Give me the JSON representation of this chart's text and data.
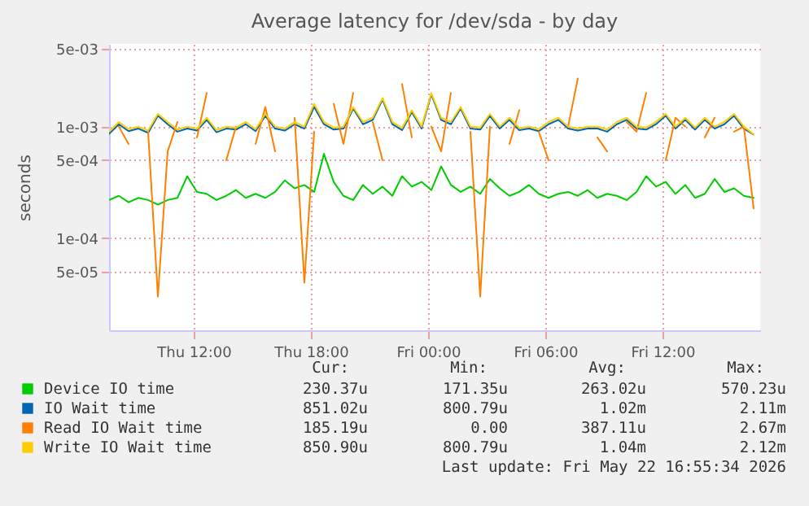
{
  "chart_data": {
    "type": "line",
    "title": "Average latency for /dev/sda - by day",
    "ylabel": "seconds",
    "log": true,
    "grid": true,
    "legend": "bottom",
    "marker": "none",
    "line_style": "solid",
    "xlim": [
      "2026-05-21T07:40",
      "2026-05-22T17:00"
    ],
    "xticks": [
      {
        "value": "2026-05-21T12:00",
        "label": "Thu 12:00"
      },
      {
        "value": "2026-05-21T18:00",
        "label": "Thu 18:00"
      },
      {
        "value": "2026-05-22T00:00",
        "label": "Fri 00:00"
      },
      {
        "value": "2026-05-22T06:00",
        "label": "Fri 06:00"
      },
      {
        "value": "2026-05-22T12:00",
        "label": "Fri 12:00"
      }
    ],
    "ylim": [
      1.5e-05,
      0.0055
    ],
    "yticks": [
      {
        "value": 5e-05,
        "label": "5e-05"
      },
      {
        "value": 0.0001,
        "label": "1e-04"
      },
      {
        "value": 0.0005,
        "label": "5e-04"
      },
      {
        "value": 0.001,
        "label": "1e-03"
      },
      {
        "value": 0.005,
        "label": "5e-03"
      }
    ],
    "x": [
      "2026-05-21T07:40",
      "2026-05-21T08:10",
      "2026-05-21T08:40",
      "2026-05-21T09:10",
      "2026-05-21T09:40",
      "2026-05-21T10:10",
      "2026-05-21T10:40",
      "2026-05-21T11:10",
      "2026-05-21T11:40",
      "2026-05-21T12:10",
      "2026-05-21T12:40",
      "2026-05-21T13:10",
      "2026-05-21T13:40",
      "2026-05-21T14:10",
      "2026-05-21T14:40",
      "2026-05-21T15:10",
      "2026-05-21T15:40",
      "2026-05-21T16:10",
      "2026-05-21T16:40",
      "2026-05-21T17:10",
      "2026-05-21T17:40",
      "2026-05-21T18:10",
      "2026-05-21T18:40",
      "2026-05-21T19:10",
      "2026-05-21T19:40",
      "2026-05-21T20:10",
      "2026-05-21T20:40",
      "2026-05-21T21:10",
      "2026-05-21T21:40",
      "2026-05-21T22:10",
      "2026-05-21T22:40",
      "2026-05-21T23:10",
      "2026-05-21T23:40",
      "2026-05-22T00:10",
      "2026-05-22T00:40",
      "2026-05-22T01:10",
      "2026-05-22T01:40",
      "2026-05-22T02:10",
      "2026-05-22T02:40",
      "2026-05-22T03:10",
      "2026-05-22T03:40",
      "2026-05-22T04:10",
      "2026-05-22T04:40",
      "2026-05-22T05:10",
      "2026-05-22T05:40",
      "2026-05-22T06:10",
      "2026-05-22T06:40",
      "2026-05-22T07:10",
      "2026-05-22T07:40",
      "2026-05-22T08:10",
      "2026-05-22T08:40",
      "2026-05-22T09:10",
      "2026-05-22T09:40",
      "2026-05-22T10:10",
      "2026-05-22T10:40",
      "2026-05-22T11:10",
      "2026-05-22T11:40",
      "2026-05-22T12:10",
      "2026-05-22T12:40",
      "2026-05-22T13:10",
      "2026-05-22T13:40",
      "2026-05-22T14:10",
      "2026-05-22T14:40",
      "2026-05-22T15:10",
      "2026-05-22T15:40",
      "2026-05-22T16:10",
      "2026-05-22T16:40"
    ],
    "series": [
      {
        "name": "Device IO time",
        "color": "#00cc00",
        "values": [
          0.00022,
          0.00024,
          0.00021,
          0.00023,
          0.00022,
          0.0002,
          0.00022,
          0.00023,
          0.00036,
          0.00026,
          0.00025,
          0.00022,
          0.00024,
          0.00027,
          0.00023,
          0.00025,
          0.00023,
          0.00026,
          0.00033,
          0.00028,
          0.0003,
          0.00026,
          0.00057,
          0.00032,
          0.00024,
          0.00022,
          0.0003,
          0.00025,
          0.00029,
          0.00024,
          0.00036,
          0.00029,
          0.00032,
          0.00027,
          0.00044,
          0.0003,
          0.00026,
          0.00029,
          0.00025,
          0.00034,
          0.00028,
          0.00024,
          0.00026,
          0.0003,
          0.00025,
          0.00023,
          0.00025,
          0.00026,
          0.00024,
          0.00027,
          0.00023,
          0.00025,
          0.00024,
          0.00022,
          0.00026,
          0.00036,
          0.00029,
          0.00032,
          0.00025,
          0.0003,
          0.00023,
          0.00025,
          0.00034,
          0.00026,
          0.00028,
          0.00024,
          0.00023
        ]
      },
      {
        "name": "IO Wait time",
        "color": "#0066b3",
        "values": [
          0.00086,
          0.00105,
          0.00091,
          0.00096,
          0.00088,
          0.00125,
          0.00105,
          0.0009,
          0.00096,
          0.00092,
          0.00115,
          0.00089,
          0.00096,
          0.00094,
          0.00105,
          0.00091,
          0.00125,
          0.00096,
          0.00092,
          0.00105,
          0.00096,
          0.0015,
          0.00105,
          0.00094,
          0.00096,
          0.00145,
          0.00105,
          0.00115,
          0.00175,
          0.00105,
          0.00093,
          0.00135,
          0.00096,
          0.00195,
          0.00115,
          0.00105,
          0.00145,
          0.00096,
          0.00094,
          0.00125,
          0.00096,
          0.00115,
          0.00093,
          0.00096,
          0.00091,
          0.00105,
          0.00115,
          0.00096,
          0.00092,
          0.00096,
          0.00096,
          0.0009,
          0.00105,
          0.00115,
          0.00096,
          0.00094,
          0.00105,
          0.00125,
          0.00096,
          0.00115,
          0.00094,
          0.00115,
          0.00096,
          0.00105,
          0.00125,
          0.00096,
          0.00085
        ]
      },
      {
        "name": "Read IO Wait time",
        "color": "#ff8000",
        "values": [
          null,
          0.001,
          0.0007,
          null,
          0.0009,
          3e-05,
          0.0006,
          0.0011,
          null,
          0.0008,
          0.002,
          null,
          0.0005,
          0.001,
          null,
          0.0007,
          0.0015,
          0.0006,
          null,
          0.0012,
          4e-05,
          0.0009,
          null,
          0.0016,
          0.0007,
          0.002,
          null,
          0.0011,
          0.0005,
          null,
          0.0024,
          0.0008,
          null,
          0.001,
          0.0006,
          0.002,
          null,
          0.0009,
          3e-05,
          0.001,
          null,
          0.0007,
          0.0014,
          null,
          0.0009,
          0.0005,
          null,
          0.001,
          0.0027,
          null,
          0.0008,
          0.0006,
          null,
          0.0011,
          0.0009,
          0.002,
          null,
          0.0005,
          0.0012,
          0.001,
          null,
          0.0008,
          0.0012,
          null,
          0.0009,
          0.001,
          0.000185
        ]
      },
      {
        "name": "Write IO Wait time",
        "color": "#ffcc00",
        "values": [
          0.0009,
          0.0011,
          0.00095,
          0.001,
          0.00092,
          0.0013,
          0.0011,
          0.00094,
          0.001,
          0.00096,
          0.0012,
          0.00093,
          0.001,
          0.00098,
          0.0011,
          0.00095,
          0.0013,
          0.001,
          0.00096,
          0.0011,
          0.001,
          0.0016,
          0.0011,
          0.00098,
          0.001,
          0.0015,
          0.0011,
          0.0012,
          0.0018,
          0.0011,
          0.00097,
          0.0014,
          0.001,
          0.002,
          0.0012,
          0.0011,
          0.0015,
          0.001,
          0.00098,
          0.0013,
          0.001,
          0.0012,
          0.00097,
          0.001,
          0.00095,
          0.0011,
          0.0012,
          0.001,
          0.00096,
          0.001,
          0.001,
          0.00094,
          0.0011,
          0.0012,
          0.001,
          0.00098,
          0.0011,
          0.0013,
          0.001,
          0.0012,
          0.00098,
          0.0012,
          0.001,
          0.0011,
          0.0013,
          0.001,
          0.00085
        ]
      }
    ],
    "annotations": [
      "Cur:",
      "Min:",
      "Avg:",
      "Max:",
      "230.37u",
      "171.35u",
      "263.02u",
      "570.23u",
      "851.02u",
      "800.79u",
      "1.02m",
      "2.11m",
      "185.19u",
      "0.00",
      "387.11u",
      "2.67m",
      "850.90u",
      "800.79u",
      "1.04m",
      "2.12m",
      "Last update: Fri May 22 16:55:34 2026"
    ]
  }
}
